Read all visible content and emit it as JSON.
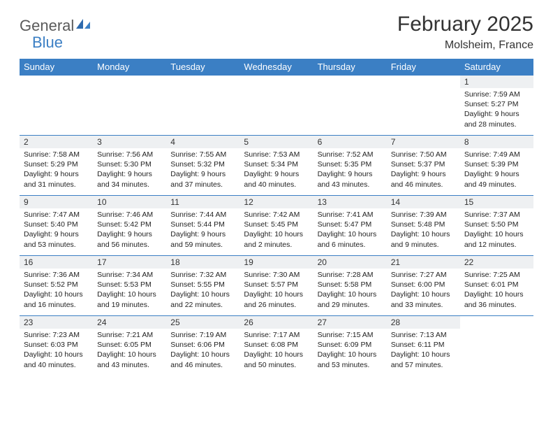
{
  "brand": {
    "word1": "General",
    "word2": "Blue",
    "accent_color": "#3b7fc4",
    "grey": "#5a5a5a"
  },
  "title": "February 2025",
  "location": "Molsheim, France",
  "colors": {
    "header_bg": "#3b7fc4",
    "header_text": "#ffffff",
    "daynum_bg": "#eef0f2",
    "border": "#3b7fc4",
    "body_text": "#333333",
    "page_bg": "#ffffff"
  },
  "fonts": {
    "title_size_pt": 30,
    "location_size_pt": 16,
    "header_size_pt": 13,
    "cell_size_pt": 10.5
  },
  "weekdays": [
    "Sunday",
    "Monday",
    "Tuesday",
    "Wednesday",
    "Thursday",
    "Friday",
    "Saturday"
  ],
  "weeks": [
    [
      null,
      null,
      null,
      null,
      null,
      null,
      {
        "d": "1",
        "sr": "Sunrise: 7:59 AM",
        "ss": "Sunset: 5:27 PM",
        "dl1": "Daylight: 9 hours",
        "dl2": "and 28 minutes."
      }
    ],
    [
      {
        "d": "2",
        "sr": "Sunrise: 7:58 AM",
        "ss": "Sunset: 5:29 PM",
        "dl1": "Daylight: 9 hours",
        "dl2": "and 31 minutes."
      },
      {
        "d": "3",
        "sr": "Sunrise: 7:56 AM",
        "ss": "Sunset: 5:30 PM",
        "dl1": "Daylight: 9 hours",
        "dl2": "and 34 minutes."
      },
      {
        "d": "4",
        "sr": "Sunrise: 7:55 AM",
        "ss": "Sunset: 5:32 PM",
        "dl1": "Daylight: 9 hours",
        "dl2": "and 37 minutes."
      },
      {
        "d": "5",
        "sr": "Sunrise: 7:53 AM",
        "ss": "Sunset: 5:34 PM",
        "dl1": "Daylight: 9 hours",
        "dl2": "and 40 minutes."
      },
      {
        "d": "6",
        "sr": "Sunrise: 7:52 AM",
        "ss": "Sunset: 5:35 PM",
        "dl1": "Daylight: 9 hours",
        "dl2": "and 43 minutes."
      },
      {
        "d": "7",
        "sr": "Sunrise: 7:50 AM",
        "ss": "Sunset: 5:37 PM",
        "dl1": "Daylight: 9 hours",
        "dl2": "and 46 minutes."
      },
      {
        "d": "8",
        "sr": "Sunrise: 7:49 AM",
        "ss": "Sunset: 5:39 PM",
        "dl1": "Daylight: 9 hours",
        "dl2": "and 49 minutes."
      }
    ],
    [
      {
        "d": "9",
        "sr": "Sunrise: 7:47 AM",
        "ss": "Sunset: 5:40 PM",
        "dl1": "Daylight: 9 hours",
        "dl2": "and 53 minutes."
      },
      {
        "d": "10",
        "sr": "Sunrise: 7:46 AM",
        "ss": "Sunset: 5:42 PM",
        "dl1": "Daylight: 9 hours",
        "dl2": "and 56 minutes."
      },
      {
        "d": "11",
        "sr": "Sunrise: 7:44 AM",
        "ss": "Sunset: 5:44 PM",
        "dl1": "Daylight: 9 hours",
        "dl2": "and 59 minutes."
      },
      {
        "d": "12",
        "sr": "Sunrise: 7:42 AM",
        "ss": "Sunset: 5:45 PM",
        "dl1": "Daylight: 10 hours",
        "dl2": "and 2 minutes."
      },
      {
        "d": "13",
        "sr": "Sunrise: 7:41 AM",
        "ss": "Sunset: 5:47 PM",
        "dl1": "Daylight: 10 hours",
        "dl2": "and 6 minutes."
      },
      {
        "d": "14",
        "sr": "Sunrise: 7:39 AM",
        "ss": "Sunset: 5:48 PM",
        "dl1": "Daylight: 10 hours",
        "dl2": "and 9 minutes."
      },
      {
        "d": "15",
        "sr": "Sunrise: 7:37 AM",
        "ss": "Sunset: 5:50 PM",
        "dl1": "Daylight: 10 hours",
        "dl2": "and 12 minutes."
      }
    ],
    [
      {
        "d": "16",
        "sr": "Sunrise: 7:36 AM",
        "ss": "Sunset: 5:52 PM",
        "dl1": "Daylight: 10 hours",
        "dl2": "and 16 minutes."
      },
      {
        "d": "17",
        "sr": "Sunrise: 7:34 AM",
        "ss": "Sunset: 5:53 PM",
        "dl1": "Daylight: 10 hours",
        "dl2": "and 19 minutes."
      },
      {
        "d": "18",
        "sr": "Sunrise: 7:32 AM",
        "ss": "Sunset: 5:55 PM",
        "dl1": "Daylight: 10 hours",
        "dl2": "and 22 minutes."
      },
      {
        "d": "19",
        "sr": "Sunrise: 7:30 AM",
        "ss": "Sunset: 5:57 PM",
        "dl1": "Daylight: 10 hours",
        "dl2": "and 26 minutes."
      },
      {
        "d": "20",
        "sr": "Sunrise: 7:28 AM",
        "ss": "Sunset: 5:58 PM",
        "dl1": "Daylight: 10 hours",
        "dl2": "and 29 minutes."
      },
      {
        "d": "21",
        "sr": "Sunrise: 7:27 AM",
        "ss": "Sunset: 6:00 PM",
        "dl1": "Daylight: 10 hours",
        "dl2": "and 33 minutes."
      },
      {
        "d": "22",
        "sr": "Sunrise: 7:25 AM",
        "ss": "Sunset: 6:01 PM",
        "dl1": "Daylight: 10 hours",
        "dl2": "and 36 minutes."
      }
    ],
    [
      {
        "d": "23",
        "sr": "Sunrise: 7:23 AM",
        "ss": "Sunset: 6:03 PM",
        "dl1": "Daylight: 10 hours",
        "dl2": "and 40 minutes."
      },
      {
        "d": "24",
        "sr": "Sunrise: 7:21 AM",
        "ss": "Sunset: 6:05 PM",
        "dl1": "Daylight: 10 hours",
        "dl2": "and 43 minutes."
      },
      {
        "d": "25",
        "sr": "Sunrise: 7:19 AM",
        "ss": "Sunset: 6:06 PM",
        "dl1": "Daylight: 10 hours",
        "dl2": "and 46 minutes."
      },
      {
        "d": "26",
        "sr": "Sunrise: 7:17 AM",
        "ss": "Sunset: 6:08 PM",
        "dl1": "Daylight: 10 hours",
        "dl2": "and 50 minutes."
      },
      {
        "d": "27",
        "sr": "Sunrise: 7:15 AM",
        "ss": "Sunset: 6:09 PM",
        "dl1": "Daylight: 10 hours",
        "dl2": "and 53 minutes."
      },
      {
        "d": "28",
        "sr": "Sunrise: 7:13 AM",
        "ss": "Sunset: 6:11 PM",
        "dl1": "Daylight: 10 hours",
        "dl2": "and 57 minutes."
      },
      null
    ]
  ]
}
